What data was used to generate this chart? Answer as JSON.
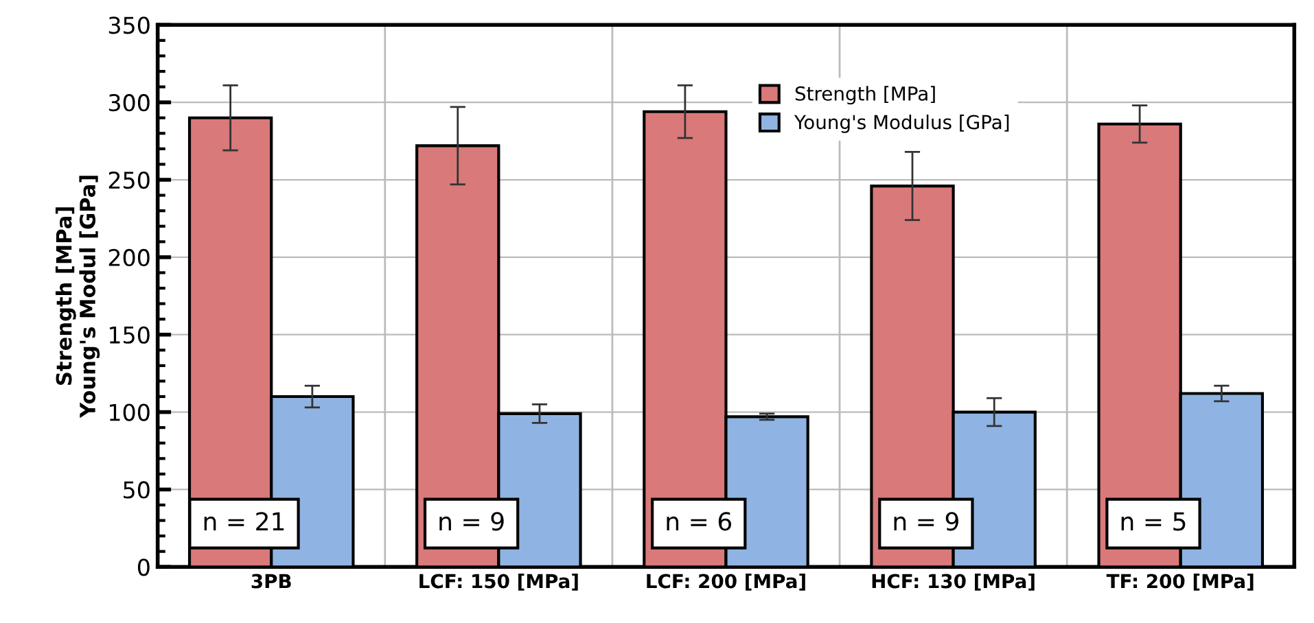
{
  "chart_data": {
    "type": "bar",
    "ylabel": "Strength [MPa]\nYoung's Modul [GPa]",
    "categories": [
      "3PB",
      "LCF: 150 [MPa]",
      "LCF: 200 [MPa]",
      "HCF: 130 [MPa]",
      "TF: 200 [MPa]"
    ],
    "series": [
      {
        "name": "Strength [MPa]",
        "color": "#d9797a",
        "values": [
          290,
          272,
          294,
          246,
          286
        ],
        "errors": [
          21,
          25,
          17,
          22,
          12
        ]
      },
      {
        "name": "Young's Modulus [GPa]",
        "color": "#8fb4e3",
        "values": [
          110,
          99,
          97,
          100,
          112
        ],
        "errors": [
          7,
          6,
          2,
          9,
          5
        ]
      }
    ],
    "annotations": [
      {
        "text": "n = 21",
        "x": "3PB",
        "y": 28
      },
      {
        "text": "n = 9",
        "x": "LCF: 150 [MPa]",
        "y": 28
      },
      {
        "text": "n = 6",
        "x": "LCF: 200 [MPa]",
        "y": 28
      },
      {
        "text": "n = 9",
        "x": "HCF: 130 [MPa]",
        "y": 28
      },
      {
        "text": "n = 5",
        "x": "TF: 200 [MPa]",
        "y": 28
      }
    ],
    "ylim": [
      0,
      350
    ],
    "yticks": [
      0,
      50,
      100,
      150,
      200,
      250,
      300,
      350
    ],
    "grid": true,
    "legend": "top right"
  }
}
